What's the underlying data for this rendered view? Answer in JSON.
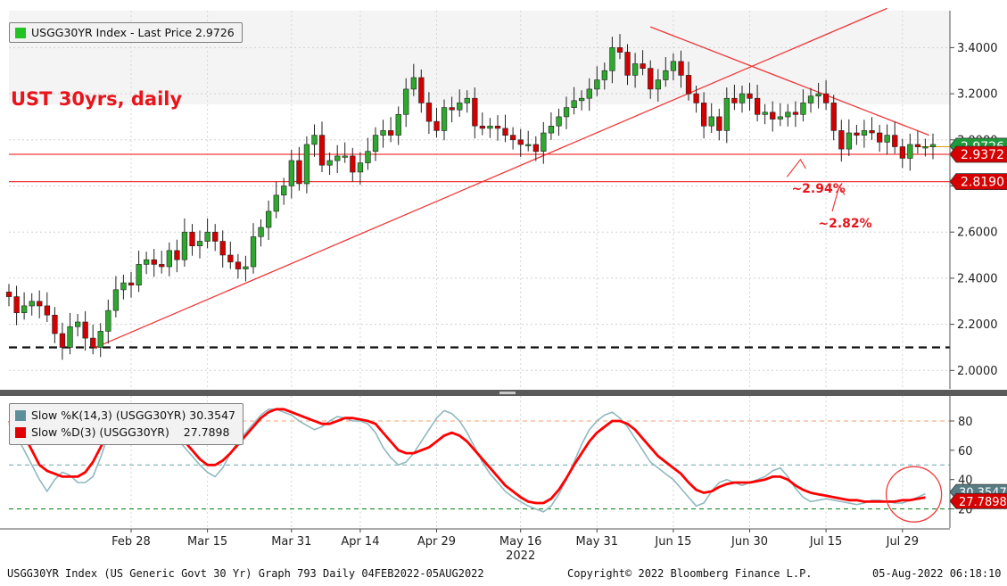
{
  "title": "UST 30yrs, daily",
  "colors": {
    "up": "#2ea82e",
    "down": "#d40000",
    "title": "#e8141b",
    "trendline": "#f03a3a",
    "k_line": "#8fb9c0",
    "d_line": "#ff0000",
    "badge_green": "#1f9a3a",
    "badge_red": "#d60000",
    "badge_gray": "#587c84"
  },
  "legend_main": {
    "label": "USGG30YR Index - Last Price 2.9726",
    "swatch_color": "#22c322"
  },
  "legend_stoch": [
    {
      "label": "Slow %K(14,3) (USGG30YR) 30.3547",
      "swatch_color": "#5c8f99"
    },
    {
      "label": "Slow %D(3) (USGG30YR)    27.7898",
      "swatch_color": "#e00000"
    }
  ],
  "annotations": [
    {
      "text": "~2.94%"
    },
    {
      "text": "~2.82%"
    }
  ],
  "footer": {
    "left": "USGG30YR Index (US Generic Govt 30 Yr) Graph 793  Daily 04FEB2022-05AUG2022",
    "center": "Copyright© 2022 Bloomberg Finance L.P.",
    "right": "05-Aug-2022 06:18:10"
  },
  "price_badges": [
    {
      "text": "2.9726",
      "value": 2.9726,
      "style": "green"
    },
    {
      "text": "2.9372",
      "value": 2.9372,
      "style": "red"
    },
    {
      "text": "2.8190",
      "value": 2.819,
      "style": "red"
    }
  ],
  "stoch_badges": [
    {
      "text": "30.3547",
      "value": 30.3547
    },
    {
      "text": "27.7898",
      "value": 27.7898
    }
  ],
  "chart_data": [
    {
      "type": "candlestick",
      "series_name": "USGG30YR Index",
      "ylim": [
        1.92,
        3.56
      ],
      "y_ticks": [
        "2.0000",
        "2.2000",
        "2.4000",
        "2.6000",
        "2.8000",
        "3.0000",
        "3.2000",
        "3.4000"
      ],
      "y_tick_values": [
        2.0,
        2.2,
        2.4,
        2.6,
        2.8,
        3.0,
        3.2,
        3.4
      ],
      "x_ticks": [
        "Feb 28",
        "Mar 15",
        "Mar 31",
        "Apr 14",
        "Apr 29",
        "May 16",
        "May 31",
        "Jun 15",
        "Jun 30",
        "Jul 15",
        "Jul 29"
      ],
      "x_tick_index": [
        16,
        26,
        37,
        46,
        56,
        67,
        77,
        87,
        97,
        107,
        117
      ],
      "year_label": "2022",
      "year_label_index": 67,
      "close": [
        2.32,
        2.25,
        2.28,
        2.3,
        2.28,
        2.24,
        2.16,
        2.1,
        2.19,
        2.21,
        2.14,
        2.1,
        2.17,
        2.26,
        2.35,
        2.38,
        2.37,
        2.46,
        2.48,
        2.46,
        2.45,
        2.52,
        2.48,
        2.6,
        2.54,
        2.56,
        2.6,
        2.56,
        2.5,
        2.47,
        2.44,
        2.45,
        2.58,
        2.62,
        2.69,
        2.76,
        2.8,
        2.91,
        2.81,
        2.98,
        3.02,
        2.89,
        2.91,
        2.93,
        2.93,
        2.86,
        2.9,
        2.95,
        3.02,
        3.04,
        3.02,
        3.11,
        3.22,
        3.27,
        3.16,
        3.08,
        3.04,
        3.14,
        3.13,
        3.16,
        3.18,
        3.06,
        3.05,
        3.06,
        3.05,
        3.02,
        3.0,
        2.98,
        2.98,
        2.95,
        3.03,
        3.06,
        3.1,
        3.14,
        3.17,
        3.18,
        3.22,
        3.26,
        3.3,
        3.4,
        3.38,
        3.28,
        3.33,
        3.31,
        3.22,
        3.26,
        3.3,
        3.34,
        3.28,
        3.2,
        3.16,
        3.06,
        3.1,
        3.04,
        3.18,
        3.16,
        3.2,
        3.18,
        3.11,
        3.12,
        3.09,
        3.1,
        3.12,
        3.11,
        3.16,
        3.19,
        3.2,
        3.16,
        3.04,
        2.96,
        3.03,
        3.02,
        3.04,
        3.03,
        2.99,
        3.02,
        2.97,
        2.92,
        2.98,
        2.97,
        2.97,
        2.98
      ],
      "open": [
        2.34,
        2.32,
        2.25,
        2.28,
        2.3,
        2.28,
        2.24,
        2.16,
        2.1,
        2.19,
        2.21,
        2.14,
        2.1,
        2.17,
        2.26,
        2.35,
        2.38,
        2.37,
        2.46,
        2.48,
        2.46,
        2.45,
        2.52,
        2.48,
        2.6,
        2.54,
        2.56,
        2.6,
        2.56,
        2.5,
        2.47,
        2.44,
        2.45,
        2.58,
        2.62,
        2.69,
        2.76,
        2.8,
        2.91,
        2.81,
        2.98,
        3.02,
        2.89,
        2.91,
        2.93,
        2.93,
        2.86,
        2.9,
        2.95,
        3.02,
        3.04,
        3.02,
        3.11,
        3.22,
        3.27,
        3.16,
        3.08,
        3.04,
        3.14,
        3.13,
        3.16,
        3.18,
        3.06,
        3.05,
        3.06,
        3.05,
        3.02,
        3.0,
        2.98,
        2.98,
        2.95,
        3.03,
        3.06,
        3.1,
        3.14,
        3.17,
        3.18,
        3.22,
        3.26,
        3.3,
        3.4,
        3.38,
        3.28,
        3.33,
        3.31,
        3.22,
        3.26,
        3.3,
        3.34,
        3.28,
        3.2,
        3.16,
        3.06,
        3.1,
        3.04,
        3.18,
        3.16,
        3.2,
        3.18,
        3.11,
        3.12,
        3.09,
        3.1,
        3.12,
        3.11,
        3.16,
        3.19,
        3.2,
        3.16,
        3.04,
        2.96,
        3.03,
        3.02,
        3.04,
        3.03,
        2.99,
        3.02,
        2.97,
        2.92,
        2.98,
        2.97,
        2.97
      ],
      "dashed_level": 2.1,
      "horizontal_levels": [
        2.9372,
        2.819
      ]
    },
    {
      "type": "line",
      "title": "Slow Stochastic",
      "ylim": [
        7,
        97
      ],
      "y_ticks": [
        "20",
        "40",
        "60",
        "80"
      ],
      "y_tick_values": [
        20,
        40,
        60,
        80
      ],
      "reference_lines": [
        80,
        50,
        20
      ],
      "series": [
        {
          "name": "Slow %K(14,3) (USGG30YR)",
          "last": 30.3547,
          "values": [
            78,
            70,
            60,
            50,
            40,
            32,
            40,
            45,
            43,
            38,
            38,
            42,
            55,
            70,
            80,
            85,
            87,
            84,
            80,
            78,
            76,
            72,
            68,
            62,
            56,
            50,
            45,
            42,
            48,
            58,
            66,
            72,
            78,
            84,
            88,
            88,
            86,
            84,
            80,
            77,
            74,
            76,
            80,
            83,
            82,
            80,
            80,
            78,
            72,
            62,
            55,
            50,
            52,
            58,
            66,
            74,
            82,
            87,
            85,
            80,
            72,
            62,
            52,
            44,
            38,
            32,
            28,
            25,
            22,
            20,
            18,
            22,
            30,
            40,
            52,
            64,
            74,
            80,
            84,
            86,
            82,
            76,
            68,
            60,
            52,
            48,
            44,
            40,
            34,
            28,
            22,
            24,
            32,
            38,
            40,
            38,
            36,
            38,
            40,
            42,
            46,
            48,
            42,
            34,
            28,
            25,
            26,
            27,
            26,
            25,
            24,
            23,
            24,
            26,
            26,
            25,
            24,
            24,
            26,
            28,
            30.35
          ]
        },
        {
          "name": "Slow %D(3) (USGG30YR)",
          "last": 27.7898,
          "values": [
            80,
            76,
            70,
            60,
            50,
            46,
            44,
            42,
            42,
            42,
            45,
            52,
            62,
            72,
            80,
            85,
            88,
            88,
            86,
            84,
            80,
            76,
            72,
            66,
            60,
            54,
            50,
            50,
            53,
            58,
            64,
            70,
            76,
            82,
            86,
            88,
            88,
            86,
            84,
            82,
            80,
            78,
            78,
            80,
            82,
            82,
            81,
            80,
            78,
            72,
            66,
            60,
            58,
            58,
            60,
            62,
            66,
            70,
            72,
            70,
            66,
            60,
            54,
            48,
            42,
            36,
            32,
            28,
            25,
            24,
            24,
            27,
            33,
            41,
            50,
            58,
            66,
            72,
            76,
            80,
            80,
            78,
            74,
            68,
            62,
            56,
            52,
            48,
            44,
            38,
            33,
            31,
            32,
            35,
            37,
            38,
            38,
            38,
            39,
            40,
            42,
            42,
            40,
            36,
            33,
            31,
            30,
            29,
            28,
            27,
            26,
            26,
            25,
            25,
            25,
            25,
            25,
            26,
            26,
            27,
            27.79
          ]
        }
      ]
    }
  ]
}
